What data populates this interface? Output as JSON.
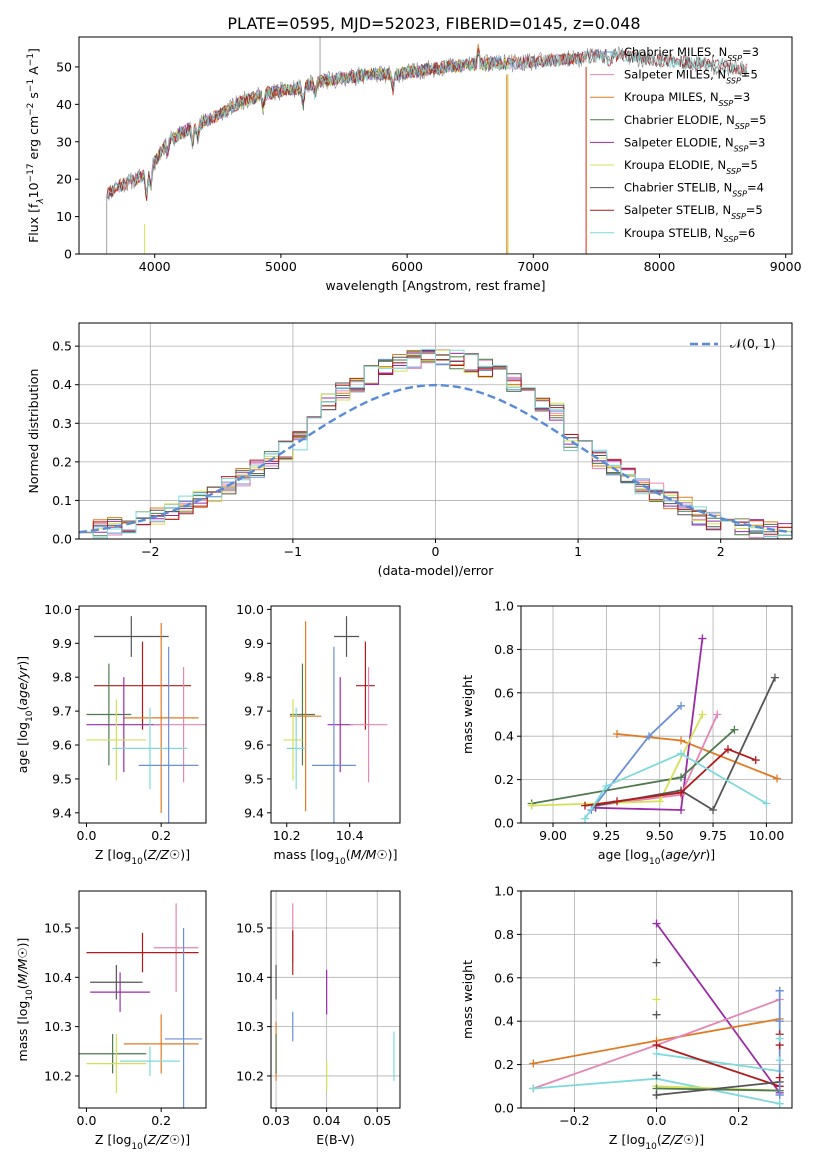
{
  "figure": {
    "suptitle": "PLATE=0595, MJD=52023, FIBERID=0145, z=0.048"
  },
  "colors": {
    "Chabrier MILES": "#6b8fd8",
    "Salpeter MILES": "#e586b4",
    "Kroupa MILES": "#e07b25",
    "Chabrier ELODIE": "#4e7a4e",
    "Salpeter ELODIE": "#9b2ca8",
    "Kroupa ELODIE": "#d4e157",
    "Chabrier STELIB": "#555555",
    "Salpeter STELIB": "#b01c1c",
    "Kroupa STELIB": "#7fd9dc",
    "observed": "#888888",
    "gaussian": "#5b8bd6"
  },
  "chart_data": [
    {
      "id": "spectrum",
      "type": "line",
      "xlabel": "wavelength [Angstrom, rest frame]",
      "ylabel": "Flux [f_λ10^-17 erg cm^-2 s^-1 A^-1]",
      "xlim": [
        3400,
        9050
      ],
      "ylim": [
        0,
        58
      ],
      "xticks": [
        4000,
        5000,
        6000,
        7000,
        8000,
        9000
      ],
      "yticks": [
        0,
        10,
        20,
        30,
        40,
        50
      ],
      "grid": false,
      "legend": "top-right",
      "legend_entries": [
        {
          "label": "Chabrier MILES, N",
          "nssp": "3"
        },
        {
          "label": "Salpeter MILES, N",
          "nssp": "5"
        },
        {
          "label": "Kroupa MILES, N",
          "nssp": "3"
        },
        {
          "label": "Chabrier ELODIE, N",
          "nssp": "5"
        },
        {
          "label": "Salpeter ELODIE, N",
          "nssp": "3"
        },
        {
          "label": "Kroupa ELODIE, N",
          "nssp": "5"
        },
        {
          "label": "Chabrier STELIB, N",
          "nssp": "4"
        },
        {
          "label": "Salpeter STELIB, N",
          "nssp": "5"
        },
        {
          "label": "Kroupa STELIB, N",
          "nssp": "6"
        }
      ],
      "continuum": {
        "x": [
          3620,
          3700,
          3850,
          3950,
          4100,
          4300,
          4500,
          4700,
          4900,
          5100,
          5300,
          5500,
          5700,
          5900,
          6100,
          6300,
          6500,
          6700,
          6900,
          7100,
          7300,
          7500,
          7700,
          7900,
          8100,
          8300,
          8500,
          8700
        ],
        "y": [
          16,
          18,
          20,
          22,
          30,
          34,
          37,
          41,
          43,
          44,
          46,
          47,
          48,
          48,
          49,
          50,
          50.5,
          51,
          51,
          51.5,
          52,
          53,
          53,
          52,
          51.5,
          51,
          50,
          49
        ]
      },
      "model_ranges": {
        "Chabrier MILES": [
          3620,
          7420
        ],
        "Salpeter MILES": [
          3620,
          7420
        ],
        "Kroupa MILES": [
          3620,
          7420
        ],
        "Chabrier ELODIE": [
          3900,
          6800
        ],
        "Salpeter ELODIE": [
          3900,
          6800
        ],
        "Kroupa ELODIE": [
          3900,
          6800
        ],
        "Chabrier STELIB": [
          3620,
          8700
        ],
        "Salpeter STELIB": [
          3620,
          8700
        ],
        "Kroupa STELIB": [
          3620,
          8700
        ]
      }
    },
    {
      "id": "residuals",
      "type": "bar",
      "xlabel": "(data-model)/error",
      "ylabel": "Normed distribution",
      "xlim": [
        -2.5,
        2.5
      ],
      "ylim": [
        0,
        0.56
      ],
      "xticks": [
        -2,
        -1,
        0,
        1,
        2
      ],
      "yticks": [
        0.0,
        0.1,
        0.2,
        0.3,
        0.4,
        0.5
      ],
      "grid": true,
      "legend": "top-right",
      "gaussian_label": "𝒩(0, 1)",
      "bin_width": 0.1
    },
    {
      "id": "age_vs_Z",
      "type": "scatter",
      "xlabel": "Z [log10(Z/Z☉)]",
      "ylabel": "age [log10(age/yr)]",
      "xlim": [
        -0.02,
        0.32
      ],
      "ylim": [
        9.37,
        10.01
      ],
      "xticks": [
        0.0,
        0.2
      ],
      "yticks": [
        9.4,
        9.5,
        9.6,
        9.7,
        9.8,
        9.9,
        10.0
      ],
      "grid": false,
      "points": [
        {
          "m": "Chabrier STELIB",
          "x": 0.12,
          "xe": 0.1,
          "y": 9.92,
          "ye": 0.06
        },
        {
          "m": "Salpeter STELIB",
          "x": 0.15,
          "xe": 0.13,
          "y": 9.775,
          "ye": 0.13
        },
        {
          "m": "Chabrier ELODIE",
          "x": 0.06,
          "xe": 0.06,
          "y": 9.69,
          "ye": 0.15
        },
        {
          "m": "Kroupa MILES",
          "x": 0.2,
          "xe": 0.1,
          "y": 9.68,
          "ye": 0.28
        },
        {
          "m": "Salpeter ELODIE",
          "x": 0.1,
          "xe": 0.1,
          "y": 9.66,
          "ye": 0.14
        },
        {
          "m": "Salpeter MILES",
          "x": 0.26,
          "xe": 0.08,
          "y": 9.66,
          "ye": 0.17
        },
        {
          "m": "Kroupa ELODIE",
          "x": 0.08,
          "xe": 0.08,
          "y": 9.615,
          "ye": 0.12
        },
        {
          "m": "Kroupa STELIB",
          "x": 0.17,
          "xe": 0.1,
          "y": 9.59,
          "ye": 0.12
        },
        {
          "m": "Chabrier MILES",
          "x": 0.22,
          "xe": 0.08,
          "y": 9.54,
          "ye": 0.35
        }
      ]
    },
    {
      "id": "age_vs_mass",
      "type": "scatter",
      "xlabel": "mass [log10(M/M☉)]",
      "ylabel": "",
      "xlim": [
        10.15,
        10.56
      ],
      "ylim": [
        9.37,
        10.01
      ],
      "xticks": [
        10.2,
        10.4
      ],
      "yticks": [
        9.4,
        9.5,
        9.6,
        9.7,
        9.8,
        9.9,
        10.0
      ],
      "grid": false,
      "points": [
        {
          "m": "Chabrier STELIB",
          "x": 10.39,
          "xe": 0.04,
          "y": 9.92,
          "ye": 0.06
        },
        {
          "m": "Salpeter STELIB",
          "x": 10.45,
          "xe": 0.03,
          "y": 9.775,
          "ye": 0.13
        },
        {
          "m": "Chabrier ELODIE",
          "x": 10.25,
          "xe": 0.04,
          "y": 9.69,
          "ye": 0.15
        },
        {
          "m": "Kroupa MILES",
          "x": 10.26,
          "xe": 0.05,
          "y": 9.685,
          "ye": 0.28
        },
        {
          "m": "Salpeter ELODIE",
          "x": 10.37,
          "xe": 0.04,
          "y": 9.66,
          "ye": 0.14
        },
        {
          "m": "Salpeter MILES",
          "x": 10.46,
          "xe": 0.06,
          "y": 9.66,
          "ye": 0.17
        },
        {
          "m": "Kroupa ELODIE",
          "x": 10.22,
          "xe": 0.03,
          "y": 9.615,
          "ye": 0.12
        },
        {
          "m": "Kroupa STELIB",
          "x": 10.23,
          "xe": 0.03,
          "y": 9.59,
          "ye": 0.12
        },
        {
          "m": "Chabrier MILES",
          "x": 10.35,
          "xe": 0.07,
          "y": 9.54,
          "ye": 0.35
        }
      ]
    },
    {
      "id": "weight_vs_age",
      "type": "line",
      "xlabel": "age [log10(age/yr)]",
      "ylabel": "mass weight",
      "xlim": [
        8.85,
        10.12
      ],
      "ylim": [
        0,
        1.0
      ],
      "xticks": [
        9.0,
        9.25,
        9.5,
        9.75,
        10.0
      ],
      "yticks": [
        0.0,
        0.2,
        0.4,
        0.6,
        0.8,
        1.0
      ],
      "grid": true,
      "series": [
        {
          "m": "Kroupa MILES",
          "x": [
            9.3,
            9.6,
            10.05
          ],
          "y": [
            0.41,
            0.38,
            0.205
          ]
        },
        {
          "m": "Chabrier MILES",
          "x": [
            9.18,
            9.45,
            9.6
          ],
          "y": [
            0.06,
            0.4,
            0.54
          ]
        },
        {
          "m": "Salpeter ELODIE",
          "x": [
            9.2,
            9.6,
            9.7
          ],
          "y": [
            0.07,
            0.06,
            0.85
          ]
        },
        {
          "m": "Salpeter MILES",
          "x": [
            9.2,
            9.6,
            9.77
          ],
          "y": [
            0.08,
            0.13,
            0.5
          ]
        },
        {
          "m": "Chabrier ELODIE",
          "x": [
            8.9,
            9.6,
            9.85
          ],
          "y": [
            0.09,
            0.21,
            0.43
          ]
        },
        {
          "m": "Kroupa ELODIE",
          "x": [
            8.9,
            9.5,
            9.7
          ],
          "y": [
            0.08,
            0.1,
            0.5
          ]
        },
        {
          "m": "Chabrier STELIB",
          "x": [
            9.2,
            9.6,
            9.75,
            10.04
          ],
          "y": [
            0.08,
            0.15,
            0.06,
            0.67
          ]
        },
        {
          "m": "Salpeter STELIB",
          "x": [
            9.15,
            9.3,
            9.6,
            9.82,
            9.95
          ],
          "y": [
            0.08,
            0.1,
            0.14,
            0.34,
            0.29
          ]
        },
        {
          "m": "Kroupa STELIB",
          "x": [
            9.15,
            9.25,
            9.6,
            10.0
          ],
          "y": [
            0.02,
            0.17,
            0.32,
            0.09
          ]
        }
      ]
    },
    {
      "id": "mass_vs_Z",
      "type": "scatter",
      "xlabel": "Z [log10(Z/Z☉)]",
      "ylabel": "mass [log10(M/M☉)]",
      "xlim": [
        -0.02,
        0.32
      ],
      "ylim": [
        10.135,
        10.575
      ],
      "xticks": [
        0.0,
        0.2
      ],
      "yticks": [
        10.2,
        10.3,
        10.4,
        10.5
      ],
      "grid": false,
      "points": [
        {
          "m": "Salpeter MILES",
          "x": 0.24,
          "xe": 0.06,
          "y": 10.46,
          "ye": 0.09
        },
        {
          "m": "Salpeter STELIB",
          "x": 0.15,
          "xe": 0.15,
          "y": 10.45,
          "ye": 0.04
        },
        {
          "m": "Chabrier STELIB",
          "x": 0.08,
          "xe": 0.07,
          "y": 10.39,
          "ye": 0.035
        },
        {
          "m": "Salpeter ELODIE",
          "x": 0.09,
          "xe": 0.08,
          "y": 10.37,
          "ye": 0.04
        },
        {
          "m": "Kroupa MILES",
          "x": 0.2,
          "xe": 0.1,
          "y": 10.265,
          "ye": 0.06
        },
        {
          "m": "Chabrier MILES",
          "x": 0.26,
          "xe": 0.05,
          "y": 10.275,
          "ye": 0.225
        },
        {
          "m": "Chabrier ELODIE",
          "x": 0.07,
          "xe": 0.09,
          "y": 10.245,
          "ye": 0.04
        },
        {
          "m": "Kroupa STELIB",
          "x": 0.17,
          "xe": 0.08,
          "y": 10.23,
          "ye": 0.03
        },
        {
          "m": "Kroupa ELODIE",
          "x": 0.08,
          "xe": 0.08,
          "y": 10.225,
          "ye": 0.06
        }
      ]
    },
    {
      "id": "mass_vs_ebv",
      "type": "scatter",
      "xlabel": "E(B-V)",
      "ylabel": "",
      "xlim": [
        0.029,
        0.0545
      ],
      "ylim": [
        10.135,
        10.575
      ],
      "xticks": [
        0.03,
        0.04,
        0.05
      ],
      "yticks": [
        10.2,
        10.3,
        10.4,
        10.5
      ],
      "grid": true,
      "points": [
        {
          "m": "Salpeter MILES",
          "x": 0.0333,
          "y": 10.49,
          "ye": 0.06
        },
        {
          "m": "Salpeter STELIB",
          "x": 0.0333,
          "y": 10.45,
          "ye": 0.045
        },
        {
          "m": "Chabrier STELIB",
          "x": 0.03,
          "y": 10.39,
          "ye": 0.035
        },
        {
          "m": "Salpeter ELODIE",
          "x": 0.04,
          "y": 10.37,
          "ye": 0.045
        },
        {
          "m": "Chabrier MILES",
          "x": 0.0333,
          "y": 10.3,
          "ye": 0.03
        },
        {
          "m": "Kroupa MILES",
          "x": 0.03,
          "y": 10.25,
          "ye": 0.06
        },
        {
          "m": "Chabrier ELODIE",
          "x": 0.03,
          "y": 10.245,
          "ye": 0.04
        },
        {
          "m": "Kroupa ELODIE",
          "x": 0.04,
          "y": 10.2,
          "ye": 0.03
        },
        {
          "m": "Kroupa STELIB",
          "x": 0.0533,
          "y": 10.24,
          "ye": 0.05
        }
      ]
    },
    {
      "id": "weight_vs_Z",
      "type": "line",
      "xlabel": "Z [log10(Z/Z☉)]",
      "ylabel": "mass weight",
      "xlim": [
        -0.33,
        0.33
      ],
      "ylim": [
        0,
        1.0
      ],
      "xticks": [
        -0.2,
        0.0,
        0.2
      ],
      "yticks": [
        0.0,
        0.2,
        0.4,
        0.6,
        0.8,
        1.0
      ],
      "grid": true,
      "series": [
        {
          "m": "Salpeter ELODIE",
          "x": [
            0.0,
            0.3
          ],
          "y": [
            0.85,
            0.07
          ]
        },
        {
          "m": "Kroupa MILES",
          "x": [
            -0.3,
            0.0,
            0.3
          ],
          "y": [
            0.205,
            0.31,
            0.41
          ]
        },
        {
          "m": "Salpeter MILES",
          "x": [
            -0.3,
            0.0,
            0.3
          ],
          "y": [
            0.09,
            0.29,
            0.5
          ]
        },
        {
          "m": "Kroupa STELIB",
          "x": [
            -0.3,
            0.0,
            0.3
          ],
          "y": [
            0.09,
            0.135,
            0.02
          ]
        },
        {
          "m": "Kroupa STELIB",
          "x": [
            0.0,
            0.3
          ],
          "y": [
            0.25,
            0.17
          ]
        },
        {
          "m": "Salpeter STELIB",
          "x": [
            0.0,
            0.3
          ],
          "y": [
            0.29,
            0.1
          ]
        },
        {
          "m": "Kroupa ELODIE",
          "x": [
            0.0,
            0.3
          ],
          "y": [
            0.1,
            0.08
          ]
        },
        {
          "m": "Chabrier ELODIE",
          "x": [
            0.0,
            0.3
          ],
          "y": [
            0.09,
            0.08
          ]
        },
        {
          "m": "Chabrier STELIB",
          "x": [
            0.0,
            0.3
          ],
          "y": [
            0.06,
            0.12
          ]
        },
        {
          "m": "Chabrier MILES",
          "x": [
            0.3,
            0.3
          ],
          "y": [
            0.54,
            0.06
          ]
        }
      ],
      "markers": [
        {
          "m": "Chabrier STELIB",
          "x": 0.0,
          "y": [
            0.67,
            0.43,
            0.15,
            0.06
          ]
        },
        {
          "m": "Kroupa ELODIE",
          "x": 0.0,
          "y": [
            0.5
          ]
        },
        {
          "m": "Chabrier MILES",
          "x": 0.3,
          "y": [
            0.54,
            0.4,
            0.06
          ]
        },
        {
          "m": "Salpeter STELIB",
          "x": 0.3,
          "y": [
            0.34,
            0.29,
            0.14
          ]
        },
        {
          "m": "Kroupa STELIB",
          "x": 0.3,
          "y": [
            0.32,
            0.22,
            0.02
          ]
        }
      ]
    }
  ]
}
